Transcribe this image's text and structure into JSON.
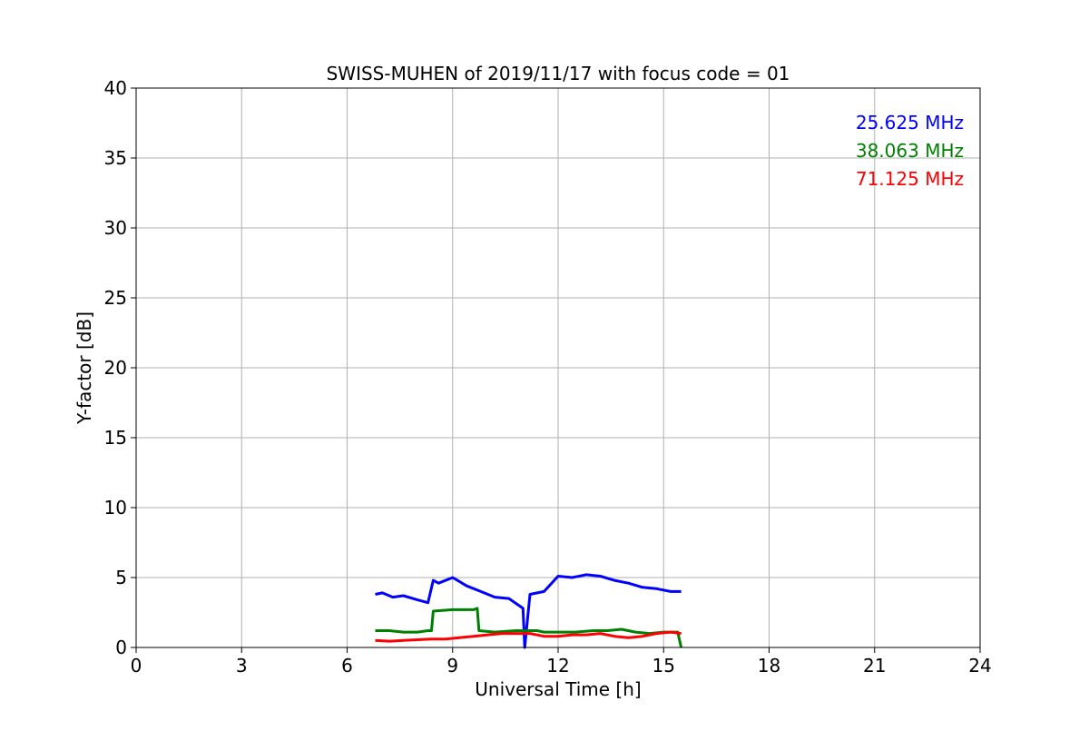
{
  "chart_data": {
    "type": "line",
    "title": "SWISS-MUHEN of 2019/11/17 with focus code = 01",
    "xlabel": "Universal Time [h]",
    "ylabel": "Y-factor [dB]",
    "xlim": [
      0,
      24
    ],
    "ylim": [
      0,
      40
    ],
    "xticks": [
      0,
      3,
      6,
      9,
      12,
      15,
      18,
      21,
      24
    ],
    "yticks": [
      0,
      5,
      10,
      15,
      20,
      25,
      30,
      35,
      40
    ],
    "xtick_labels": [
      "0",
      "3",
      "6",
      "9",
      "12",
      "15",
      "18",
      "21",
      "24"
    ],
    "ytick_labels": [
      "0",
      "5",
      "10",
      "15",
      "20",
      "25",
      "30",
      "35",
      "40"
    ],
    "grid": true,
    "legend_position": "top-right",
    "series": [
      {
        "name": "25.625 MHz",
        "color": "#0000ff",
        "x": [
          6.8,
          7.0,
          7.3,
          7.6,
          8.0,
          8.3,
          8.45,
          8.6,
          9.0,
          9.4,
          9.8,
          10.2,
          10.6,
          11.0,
          11.05,
          11.2,
          11.6,
          12.0,
          12.4,
          12.8,
          13.2,
          13.6,
          14.0,
          14.4,
          14.8,
          15.2,
          15.5
        ],
        "y": [
          3.8,
          3.9,
          3.6,
          3.7,
          3.4,
          3.2,
          4.8,
          4.6,
          5.0,
          4.4,
          4.0,
          3.6,
          3.5,
          2.8,
          0.0,
          3.8,
          4.0,
          5.1,
          5.0,
          5.2,
          5.1,
          4.8,
          4.6,
          4.3,
          4.2,
          4.0,
          4.0
        ]
      },
      {
        "name": "38.063 MHz",
        "color": "#008000",
        "x": [
          6.8,
          7.2,
          7.6,
          8.0,
          8.3,
          8.4,
          8.45,
          9.0,
          9.6,
          9.7,
          9.75,
          10.2,
          10.8,
          11.4,
          11.6,
          12.0,
          12.5,
          13.0,
          13.4,
          13.8,
          14.2,
          14.6,
          15.0,
          15.4,
          15.5
        ],
        "y": [
          1.2,
          1.2,
          1.1,
          1.1,
          1.2,
          1.2,
          2.6,
          2.7,
          2.7,
          2.8,
          1.2,
          1.1,
          1.2,
          1.2,
          1.1,
          1.1,
          1.1,
          1.2,
          1.2,
          1.3,
          1.1,
          1.0,
          1.1,
          1.1,
          0.0
        ]
      },
      {
        "name": "71.125 MHz",
        "color": "#ff0000",
        "x": [
          6.8,
          7.2,
          7.6,
          8.0,
          8.4,
          8.8,
          9.2,
          9.6,
          10.0,
          10.4,
          10.8,
          11.2,
          11.6,
          12.0,
          12.4,
          12.8,
          13.2,
          13.6,
          14.0,
          14.4,
          14.8,
          15.2,
          15.5
        ],
        "y": [
          0.5,
          0.45,
          0.5,
          0.55,
          0.6,
          0.6,
          0.7,
          0.8,
          0.9,
          1.0,
          1.0,
          1.0,
          0.8,
          0.8,
          0.9,
          0.9,
          1.0,
          0.8,
          0.7,
          0.8,
          1.0,
          1.1,
          1.0
        ]
      }
    ]
  }
}
